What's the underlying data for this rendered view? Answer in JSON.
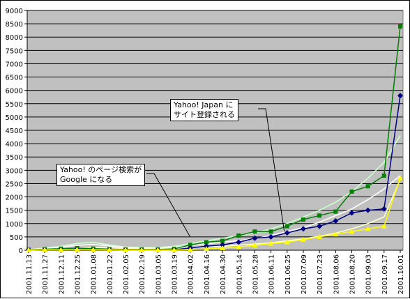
{
  "chart_data": {
    "type": "line",
    "title": "",
    "xlabel": "",
    "ylabel": "",
    "ylim": [
      0,
      9000
    ],
    "yticks": [
      0,
      500,
      1000,
      1500,
      2000,
      2500,
      3000,
      3500,
      4000,
      4500,
      5000,
      5500,
      6000,
      6500,
      7000,
      7500,
      8000,
      8500,
      9000
    ],
    "grid": true,
    "legend": "none",
    "categories": [
      "2001.11.13",
      "2001.11.27",
      "2001.12.11",
      "2001.12.25",
      "2001.01.08",
      "2001.01.22",
      "2001.02.05",
      "2001.02.19",
      "2001.03.05",
      "2001.03.19",
      "2001.04.02",
      "2001.04.16",
      "2001.04.30",
      "2001.05.14",
      "2001.05.28",
      "2001.06.11",
      "2001.06.25",
      "2001.07.09",
      "2001.07.23",
      "2001.08.06",
      "2001.08.20",
      "2001.09.03",
      "2001.09.17",
      "2001.10.01"
    ],
    "colors": {
      "plot_bg": "#c0c0c0",
      "grid": "#000000",
      "green": "#008000",
      "navy": "#000080",
      "yellow": "#ffff00",
      "trend_green": "#ccffcc",
      "trend_navy": "#ffffff",
      "trend_yellow": "#ffffcc"
    },
    "series": [
      {
        "color": "#008000",
        "marker": "square",
        "values": [
          20,
          40,
          60,
          80,
          60,
          40,
          30,
          30,
          30,
          50,
          200,
          300,
          350,
          550,
          700,
          700,
          900,
          1150,
          1300,
          1450,
          2200,
          2400,
          2800,
          8400
        ]
      },
      {
        "color": "#000080",
        "marker": "diamond",
        "values": [
          10,
          20,
          30,
          40,
          30,
          20,
          15,
          15,
          15,
          20,
          80,
          150,
          200,
          300,
          450,
          500,
          650,
          800,
          900,
          1100,
          1400,
          1500,
          1550,
          5800
        ]
      },
      {
        "color": "#ffff00",
        "marker": "triangle",
        "values": [
          10,
          15,
          20,
          30,
          20,
          15,
          10,
          10,
          10,
          10,
          20,
          50,
          80,
          120,
          180,
          250,
          300,
          400,
          500,
          600,
          700,
          800,
          900,
          2700
        ]
      }
    ],
    "trendlines": [
      {
        "color": "#ccffcc",
        "values": [
          30,
          80,
          150,
          250,
          300,
          200,
          120,
          100,
          100,
          150,
          250,
          350,
          450,
          550,
          650,
          800,
          1000,
          1250,
          1500,
          1800,
          2200,
          2700,
          3300,
          4300
        ]
      },
      {
        "color": "#ffffff",
        "values": [
          20,
          60,
          120,
          180,
          220,
          160,
          100,
          80,
          80,
          110,
          170,
          240,
          300,
          360,
          430,
          550,
          700,
          850,
          1050,
          1300,
          1550,
          1900,
          2300,
          2800
        ]
      },
      {
        "color": "#ffffcc",
        "values": [
          10,
          30,
          60,
          90,
          110,
          90,
          60,
          50,
          50,
          60,
          90,
          120,
          150,
          190,
          230,
          280,
          350,
          430,
          520,
          640,
          800,
          1000,
          1250,
          2650
        ]
      }
    ],
    "annotations": [
      {
        "lines": [
          "Yahoo!  Japan に",
          "サイト登録される"
        ],
        "points_to": "2001.06.25"
      },
      {
        "lines": [
          "Yahoo! のページ検索が",
          "Google になる"
        ],
        "points_to": "2001.04.02"
      }
    ]
  }
}
